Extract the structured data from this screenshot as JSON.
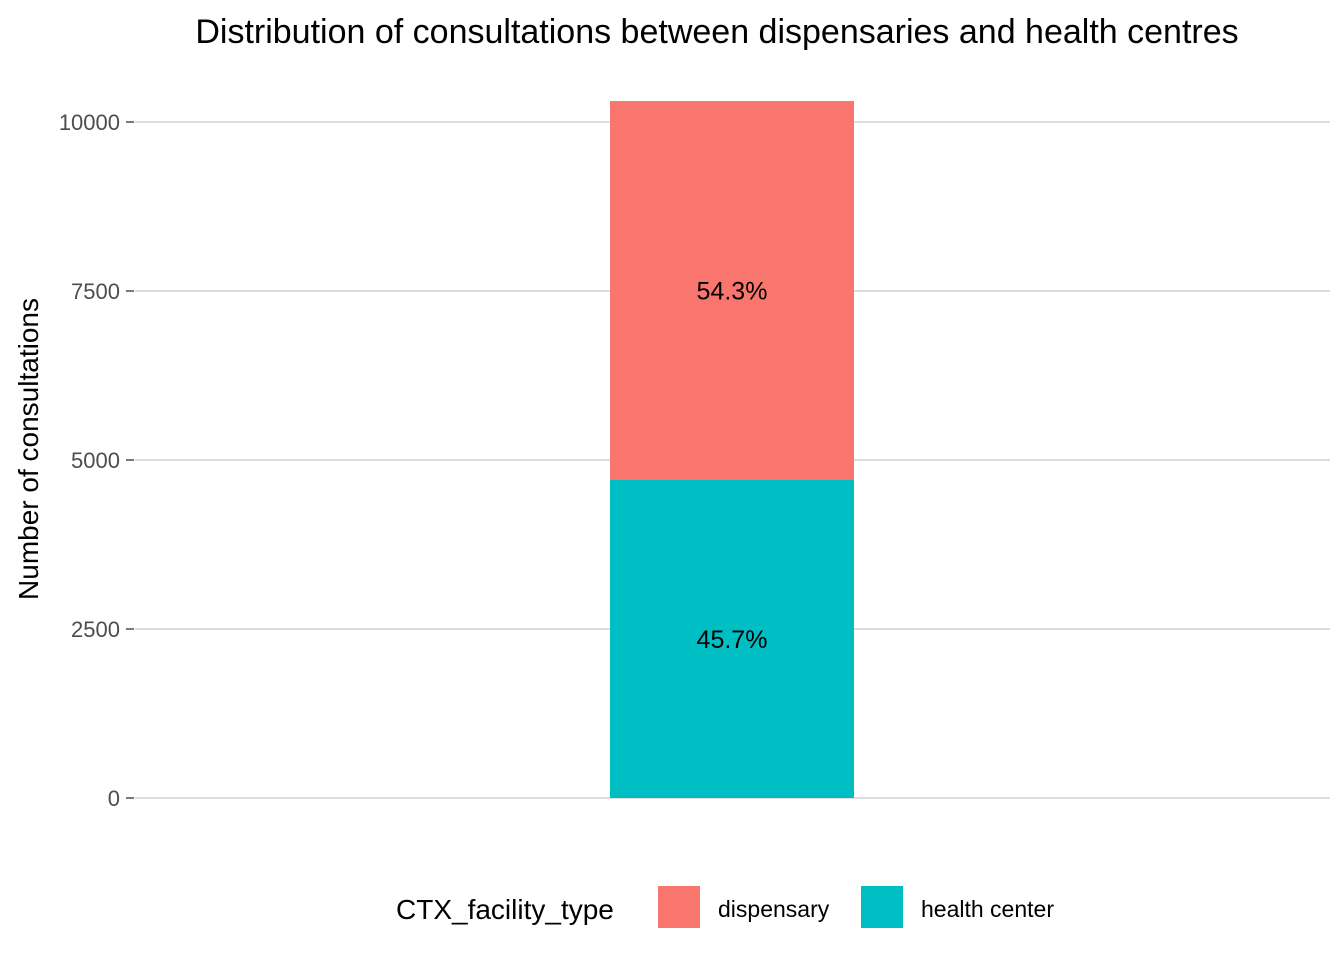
{
  "chart_data": {
    "type": "bar",
    "stacked": true,
    "title": "Distribution of consultations between dispensaries and health centres",
    "xlabel": "",
    "ylabel": "Number of consultations",
    "categories": [
      ""
    ],
    "ylim": [
      0,
      10300
    ],
    "yticks": [
      0,
      2500,
      5000,
      7500,
      10000
    ],
    "grid": true,
    "legend": {
      "title": "CTX_facility_type",
      "position": "bottom"
    },
    "series": [
      {
        "name": "health center",
        "values": [
          4710
        ],
        "label": "45.7%",
        "color": "#00BFC4"
      },
      {
        "name": "dispensary",
        "values": [
          5600
        ],
        "label": "54.3%",
        "color": "#F8766D"
      }
    ]
  }
}
